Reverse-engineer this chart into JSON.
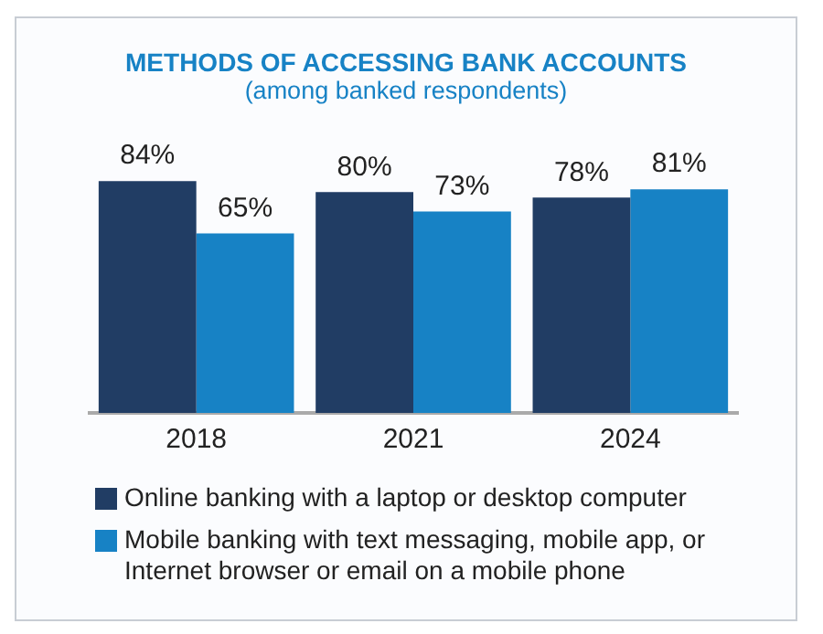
{
  "chart_data": {
    "type": "bar",
    "title": "METHODS OF ACCESSING BANK ACCOUNTS",
    "subtitle": "(among banked respondents)",
    "categories": [
      "2018",
      "2021",
      "2024"
    ],
    "series": [
      {
        "name": "Online banking with a laptop or desktop computer",
        "color": "#213d64",
        "values": [
          84,
          80,
          78
        ],
        "value_labels": [
          "84%",
          "80%",
          "78%"
        ]
      },
      {
        "name": "Mobile banking with text messaging, mobile app, or Internet browser or email on a mobile phone",
        "color": "#1782c5",
        "values": [
          65,
          73,
          81
        ],
        "value_labels": [
          "65%",
          "73%",
          "81%"
        ]
      }
    ],
    "legend": "bottom",
    "grid": false
  }
}
